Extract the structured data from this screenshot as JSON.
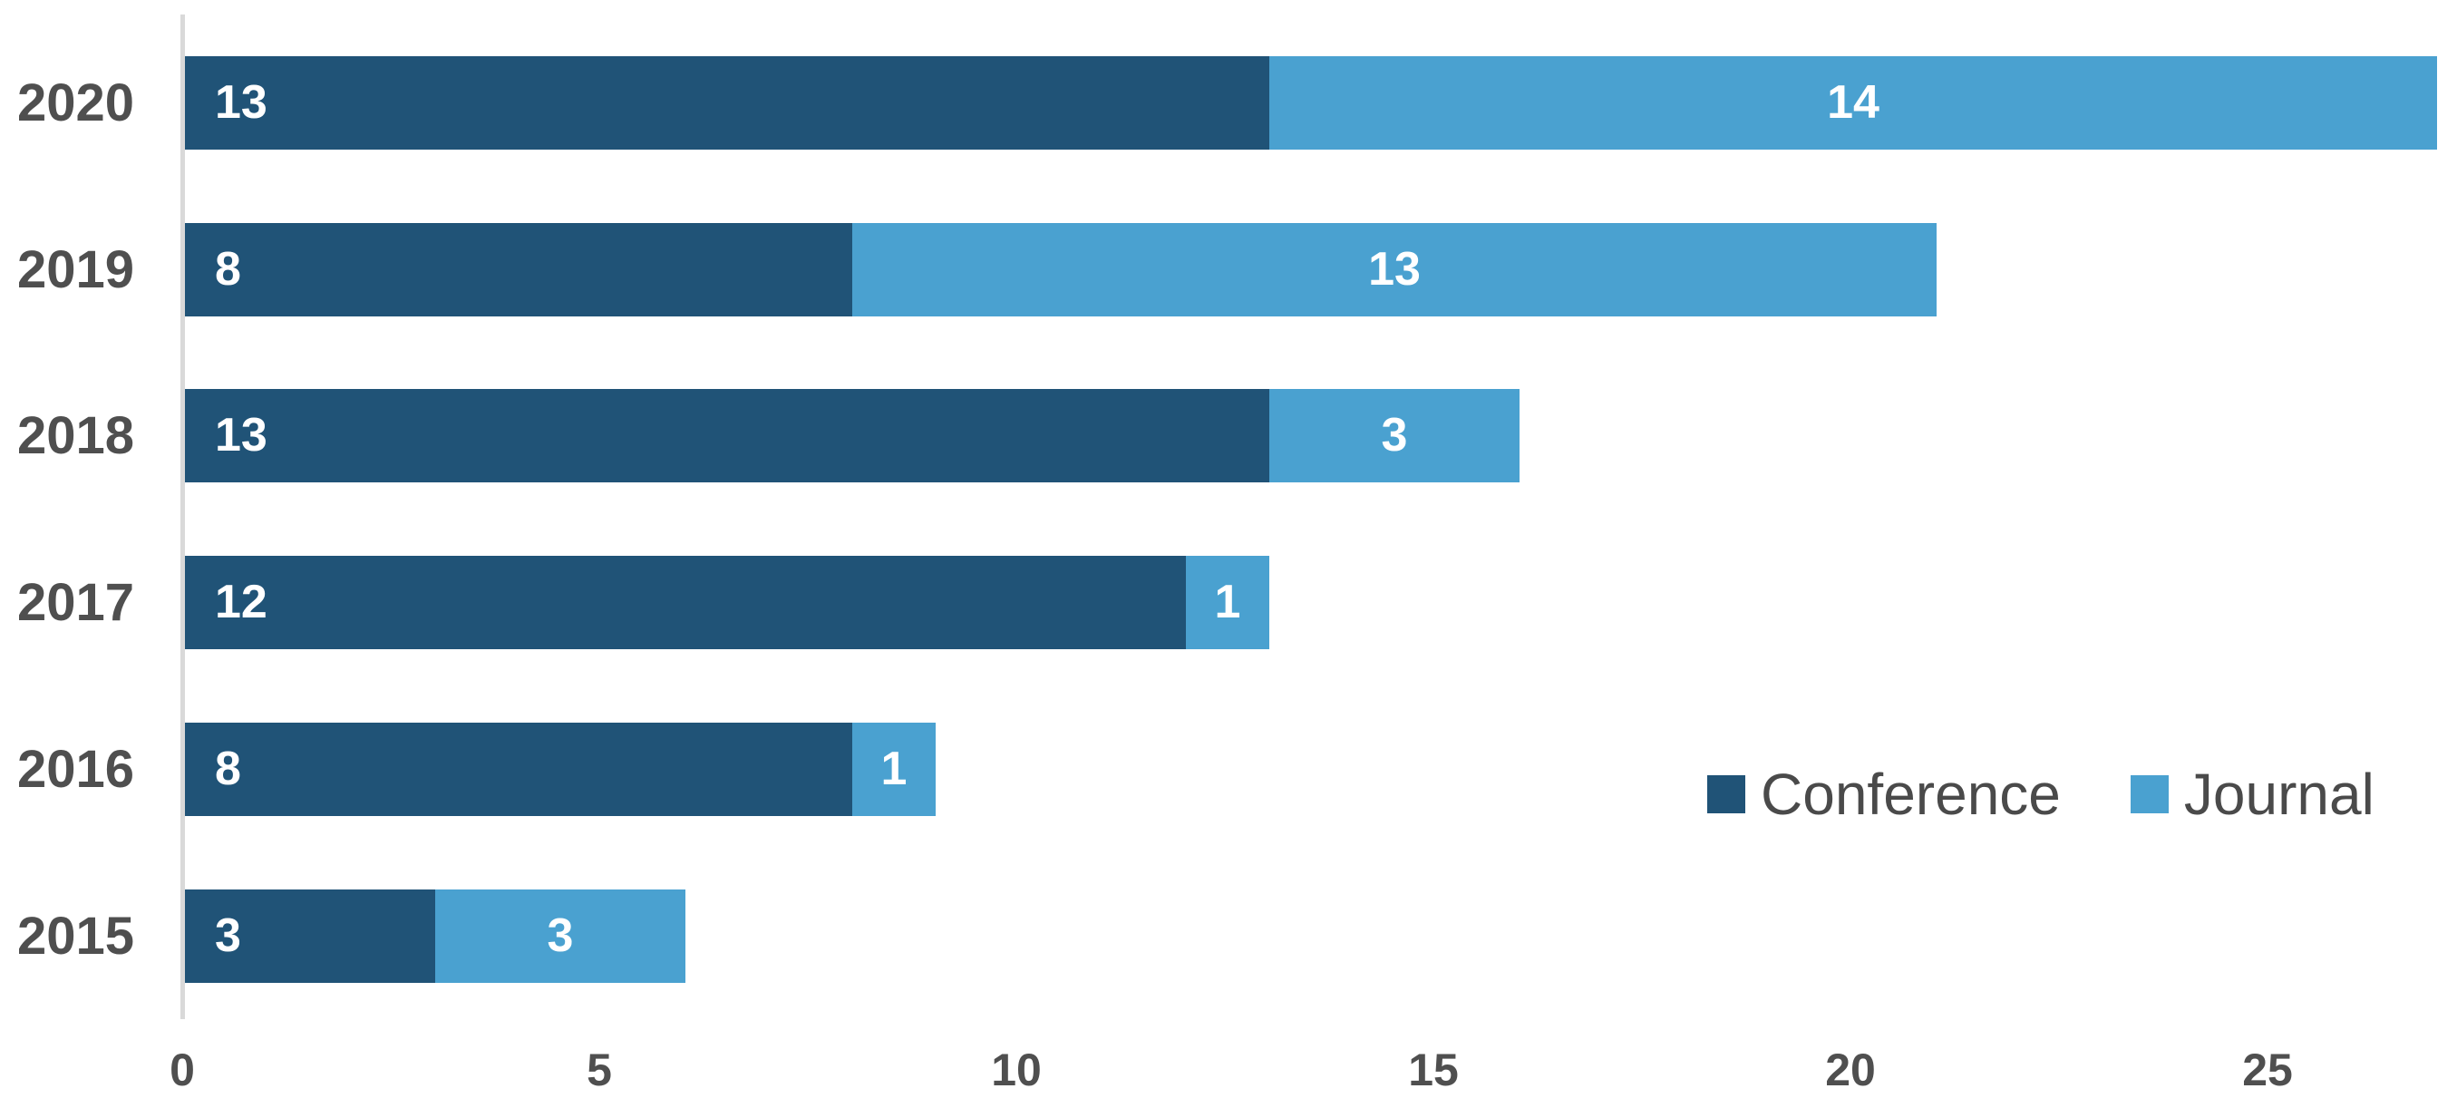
{
  "chart_data": {
    "type": "bar",
    "orientation": "horizontal",
    "stacked": true,
    "title": "",
    "xlabel": "",
    "ylabel": "",
    "categories": [
      "2020",
      "2019",
      "2018",
      "2017",
      "2016",
      "2015"
    ],
    "series": [
      {
        "name": "Conference",
        "color": "#205377",
        "values": [
          13,
          8,
          13,
          12,
          8,
          3
        ],
        "data_label_color": "#FFFFFF",
        "data_label_position": "inside-base"
      },
      {
        "name": "Journal",
        "color": "#4AA1D0",
        "values": [
          14,
          13,
          3,
          1,
          1,
          3
        ],
        "data_label_color": "#FFFFFF",
        "data_label_position": "inside-center"
      }
    ],
    "totals": [
      27,
      21,
      16,
      13,
      9,
      6
    ],
    "x_axis": {
      "ticks": [
        "0",
        "5",
        "10",
        "15",
        "20",
        "25"
      ],
      "tick_values": [
        0,
        5,
        10,
        15,
        20,
        25
      ],
      "min": 0,
      "max": 27.25
    },
    "grid": false,
    "legend_position": "middle-right",
    "axis_line_color": "#D9D9D9",
    "axis_text_color": "#4F4F4F"
  },
  "legend": {
    "items": [
      {
        "label": "Conference",
        "color": "#205377"
      },
      {
        "label": "Journal",
        "color": "#4AA1D0"
      }
    ]
  }
}
